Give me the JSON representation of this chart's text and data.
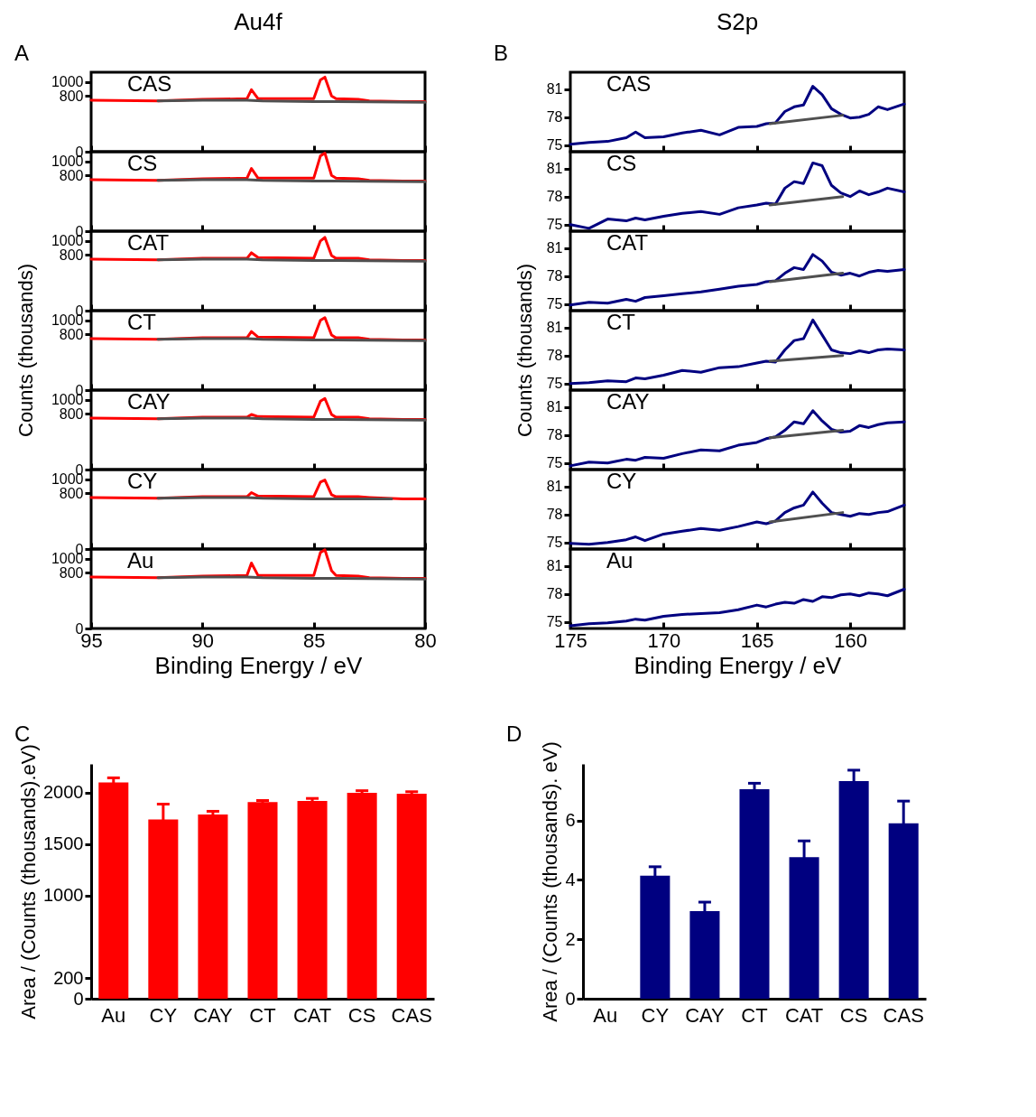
{
  "chart_data": [
    {
      "type": "line",
      "title": "Au4f",
      "annotations": [
        "A",
        "CAS"
      ],
      "xlim": [
        95,
        80
      ],
      "xticks": [
        95,
        90,
        85,
        80
      ],
      "ylim": [
        0,
        1140
      ],
      "yticks": [
        0,
        800,
        1000
      ],
      "tick_labels": "y",
      "series": [
        {
          "color": "#ff0000",
          "x": [
            95,
            92,
            90,
            88,
            87.8,
            87.5,
            85,
            84.7,
            84.5,
            84.2,
            84,
            83,
            82.5,
            81,
            80
          ],
          "values": [
            740,
            730,
            750,
            760,
            890,
            760,
            760,
            1030,
            1070,
            800,
            760,
            750,
            730,
            720,
            720
          ]
        },
        {
          "color": "#505050",
          "x": [
            92,
            90,
            88,
            87.3,
            85,
            84,
            80
          ],
          "values": [
            730,
            740,
            740,
            730,
            720,
            720,
            710
          ]
        }
      ]
    },
    {
      "type": "line",
      "annotations": [
        "CS"
      ],
      "xlim": [
        95,
        80
      ],
      "xticks": [
        95,
        90,
        85,
        80
      ],
      "ylim": [
        0,
        1140
      ],
      "yticks": [
        0,
        800,
        1000
      ],
      "tick_labels": "y",
      "series": [
        {
          "color": "#ff0000",
          "x": [
            95,
            92,
            90,
            88,
            87.8,
            87.5,
            85,
            84.7,
            84.5,
            84.2,
            84,
            83,
            82.5,
            81,
            80
          ],
          "values": [
            740,
            730,
            750,
            760,
            900,
            760,
            760,
            1080,
            1120,
            800,
            760,
            750,
            730,
            720,
            720
          ]
        },
        {
          "color": "#505050",
          "x": [
            92,
            90,
            88,
            87.3,
            85,
            84,
            80
          ],
          "values": [
            730,
            740,
            740,
            730,
            720,
            720,
            710
          ]
        }
      ]
    },
    {
      "type": "line",
      "annotations": [
        "CAT"
      ],
      "xlim": [
        95,
        80
      ],
      "xticks": [
        95,
        90,
        85,
        80
      ],
      "ylim": [
        0,
        1140
      ],
      "yticks": [
        0,
        800,
        1000
      ],
      "tick_labels": "y",
      "series": [
        {
          "color": "#ff0000",
          "x": [
            95,
            92,
            90,
            88,
            87.8,
            87.5,
            85,
            84.7,
            84.5,
            84.2,
            84,
            83,
            82.5,
            81,
            80
          ],
          "values": [
            740,
            730,
            750,
            750,
            830,
            760,
            750,
            1000,
            1050,
            790,
            750,
            750,
            730,
            720,
            720
          ]
        },
        {
          "color": "#505050",
          "x": [
            92,
            90,
            88,
            87.3,
            85,
            84,
            80
          ],
          "values": [
            730,
            740,
            740,
            730,
            720,
            720,
            710
          ]
        }
      ]
    },
    {
      "type": "line",
      "ylabel": "Counts (thousands)",
      "annotations": [
        "CT"
      ],
      "xlim": [
        95,
        80
      ],
      "xticks": [
        95,
        90,
        85,
        80
      ],
      "ylim": [
        0,
        1140
      ],
      "yticks": [
        0,
        800,
        1000
      ],
      "tick_labels": "y",
      "series": [
        {
          "color": "#ff0000",
          "x": [
            95,
            92,
            90,
            88,
            87.8,
            87.5,
            85,
            84.7,
            84.5,
            84.2,
            84,
            83,
            82.5,
            81,
            80
          ],
          "values": [
            740,
            730,
            750,
            750,
            840,
            760,
            750,
            1000,
            1040,
            790,
            750,
            750,
            730,
            720,
            720
          ]
        },
        {
          "color": "#505050",
          "x": [
            92,
            90,
            88,
            87.3,
            85,
            84,
            80
          ],
          "values": [
            730,
            740,
            740,
            730,
            720,
            720,
            710
          ]
        }
      ]
    },
    {
      "type": "line",
      "annotations": [
        "CAY"
      ],
      "xlim": [
        95,
        80
      ],
      "xticks": [
        95,
        90,
        85,
        80
      ],
      "ylim": [
        0,
        1140
      ],
      "yticks": [
        0,
        800,
        1000
      ],
      "tick_labels": "y",
      "series": [
        {
          "color": "#ff0000",
          "x": [
            95,
            92,
            90,
            88,
            87.8,
            87.5,
            85,
            84.7,
            84.5,
            84.2,
            84,
            83,
            82.5,
            81,
            80
          ],
          "values": [
            740,
            730,
            750,
            750,
            790,
            760,
            750,
            980,
            1020,
            790,
            750,
            750,
            730,
            720,
            720
          ]
        },
        {
          "color": "#505050",
          "x": [
            92,
            90,
            88,
            87.3,
            85,
            84,
            80
          ],
          "values": [
            730,
            740,
            740,
            730,
            720,
            720,
            710
          ]
        }
      ]
    },
    {
      "type": "line",
      "annotations": [
        "CY"
      ],
      "xlim": [
        95,
        80
      ],
      "xticks": [
        95,
        90,
        85,
        80
      ],
      "ylim": [
        0,
        1140
      ],
      "yticks": [
        0,
        800,
        1000
      ],
      "tick_labels": "y",
      "series": [
        {
          "color": "#ff0000",
          "x": [
            95,
            92,
            90,
            88,
            87.8,
            87.5,
            85,
            84.7,
            84.5,
            84.2,
            84,
            83,
            82.5,
            81,
            80
          ],
          "values": [
            740,
            730,
            750,
            750,
            810,
            760,
            750,
            960,
            990,
            780,
            750,
            750,
            740,
            720,
            720
          ]
        },
        {
          "color": "#505050",
          "x": [
            92,
            90,
            88,
            87.3,
            85,
            84,
            81.5
          ],
          "values": [
            730,
            740,
            740,
            730,
            720,
            720,
            720
          ]
        }
      ]
    },
    {
      "type": "line",
      "annotations": [
        "Au"
      ],
      "xlabel": "Binding Energy / eV",
      "xlim": [
        95,
        80
      ],
      "xticks": [
        95,
        90,
        85,
        80
      ],
      "ylim": [
        0,
        1140
      ],
      "yticks": [
        0,
        800,
        1000
      ],
      "series": [
        {
          "color": "#ff0000",
          "x": [
            95,
            92,
            90,
            88,
            87.8,
            87.5,
            85,
            84.7,
            84.5,
            84.2,
            84,
            83,
            82.5,
            81,
            80
          ],
          "values": [
            740,
            730,
            750,
            760,
            940,
            760,
            760,
            1090,
            1130,
            830,
            760,
            750,
            730,
            720,
            720
          ]
        },
        {
          "color": "#505050",
          "x": [
            92,
            90,
            88,
            87.3,
            85,
            84,
            80
          ],
          "values": [
            730,
            740,
            740,
            730,
            720,
            720,
            710
          ]
        }
      ]
    },
    {
      "type": "line",
      "title": "S2p",
      "annotations": [
        "B",
        "CAS"
      ],
      "xlim": [
        175,
        157.1
      ],
      "xticks": [
        175,
        170,
        165,
        160
      ],
      "ylim": [
        74.3,
        82.8
      ],
      "yticks": [
        75,
        78,
        81
      ],
      "tick_labels": "y",
      "series": [
        {
          "color": "#000080",
          "x": [
            175,
            174,
            173,
            172,
            171.5,
            171,
            170,
            169,
            168,
            167,
            166,
            165,
            164.5,
            164,
            163.5,
            163,
            162.5,
            162,
            161.5,
            161,
            160.5,
            160,
            159.5,
            159,
            158.5,
            158,
            157.1
          ],
          "values": [
            75.1,
            75.3,
            75.4,
            75.8,
            76.4,
            75.8,
            75.9,
            76.3,
            76.6,
            76.1,
            76.9,
            77.0,
            77.3,
            77.4,
            78.6,
            79.1,
            79.3,
            81.3,
            80.4,
            78.9,
            78.3,
            77.9,
            78.0,
            78.3,
            79.1,
            78.8,
            79.4
          ]
        },
        {
          "color": "#505050",
          "x": [
            164.3,
            160.4
          ],
          "values": [
            77.3,
            78.2
          ]
        }
      ]
    },
    {
      "type": "line",
      "annotations": [
        "CS"
      ],
      "xlim": [
        175,
        157.1
      ],
      "xticks": [
        175,
        170,
        165,
        160
      ],
      "ylim": [
        74.3,
        82.8
      ],
      "yticks": [
        75,
        78,
        81
      ],
      "tick_labels": "y",
      "series": [
        {
          "color": "#000080",
          "x": [
            175,
            174,
            173,
            172,
            171.5,
            171,
            170,
            169,
            168,
            167,
            166,
            165,
            164.5,
            164,
            163.5,
            163,
            162.5,
            162,
            161.5,
            161,
            160.5,
            160,
            159.5,
            159,
            158.5,
            158,
            157.1
          ],
          "values": [
            75.0,
            74.6,
            75.6,
            75.4,
            75.7,
            75.5,
            75.9,
            76.2,
            76.4,
            76.1,
            76.8,
            77.1,
            77.3,
            77.2,
            78.9,
            79.6,
            79.4,
            81.6,
            81.3,
            79.2,
            78.4,
            78.0,
            78.6,
            78.2,
            78.5,
            78.9,
            78.5
          ]
        },
        {
          "color": "#505050",
          "x": [
            164.3,
            160.4
          ],
          "values": [
            77.1,
            78.0
          ]
        }
      ]
    },
    {
      "type": "line",
      "annotations": [
        "CAT"
      ],
      "xlim": [
        175,
        157.1
      ],
      "xticks": [
        175,
        170,
        165,
        160
      ],
      "ylim": [
        74.3,
        82.8
      ],
      "yticks": [
        75,
        78,
        81
      ],
      "tick_labels": "y",
      "series": [
        {
          "color": "#000080",
          "x": [
            175,
            174,
            173,
            172,
            171.5,
            171,
            170,
            169,
            168,
            167,
            166,
            165,
            164.5,
            164,
            163.5,
            163,
            162.5,
            162,
            161.5,
            161,
            160.5,
            160,
            159.5,
            159,
            158.5,
            158,
            157.1
          ],
          "values": [
            74.9,
            75.2,
            75.1,
            75.5,
            75.3,
            75.7,
            75.9,
            76.1,
            76.3,
            76.6,
            76.9,
            77.1,
            77.4,
            77.5,
            78.3,
            78.9,
            78.7,
            80.3,
            79.6,
            78.4,
            78.1,
            78.3,
            78.0,
            78.4,
            78.6,
            78.5,
            78.7
          ]
        },
        {
          "color": "#505050",
          "x": [
            164.3,
            160.4
          ],
          "values": [
            77.4,
            78.3
          ]
        }
      ]
    },
    {
      "type": "line",
      "ylabel": "Counts (thousands)",
      "annotations": [
        "CT"
      ],
      "xlim": [
        175,
        157.1
      ],
      "xticks": [
        175,
        170,
        165,
        160
      ],
      "ylim": [
        74.3,
        82.8
      ],
      "yticks": [
        75,
        78,
        81
      ],
      "tick_labels": "y",
      "series": [
        {
          "color": "#000080",
          "x": [
            175,
            174,
            173,
            172,
            171.5,
            171,
            170,
            169,
            168,
            167,
            166,
            165,
            164.5,
            164,
            163.5,
            163,
            162.5,
            162,
            161.5,
            161,
            160.5,
            160,
            159.5,
            159,
            158.5,
            158,
            157.1
          ],
          "values": [
            75.0,
            75.1,
            75.3,
            75.2,
            75.6,
            75.5,
            75.9,
            76.4,
            76.2,
            76.7,
            76.8,
            77.2,
            77.4,
            77.3,
            78.6,
            79.6,
            79.8,
            81.8,
            80.2,
            78.6,
            78.3,
            78.2,
            78.5,
            78.3,
            78.6,
            78.7,
            78.6
          ]
        },
        {
          "color": "#505050",
          "x": [
            164.3,
            160.4
          ],
          "values": [
            77.4,
            78.0
          ]
        }
      ]
    },
    {
      "type": "line",
      "annotations": [
        "CAY"
      ],
      "xlim": [
        175,
        157.1
      ],
      "xticks": [
        175,
        170,
        165,
        160
      ],
      "ylim": [
        74.3,
        82.8
      ],
      "yticks": [
        75,
        78,
        81
      ],
      "tick_labels": "y",
      "series": [
        {
          "color": "#000080",
          "x": [
            175,
            174,
            173,
            172,
            171.5,
            171,
            170,
            169,
            168,
            167,
            166,
            165,
            164.5,
            164,
            163.5,
            163,
            162.5,
            162,
            161.5,
            161,
            160.5,
            160,
            159.5,
            159,
            158.5,
            158,
            157.1
          ],
          "values": [
            74.7,
            75.1,
            75.0,
            75.4,
            75.3,
            75.6,
            75.5,
            76.0,
            76.4,
            76.3,
            76.9,
            77.2,
            77.6,
            77.8,
            78.5,
            79.4,
            79.2,
            80.6,
            79.5,
            78.6,
            78.3,
            78.4,
            79.0,
            78.8,
            79.1,
            79.3,
            79.4
          ]
        },
        {
          "color": "#505050",
          "x": [
            164.3,
            160.4
          ],
          "values": [
            77.7,
            78.5
          ]
        }
      ]
    },
    {
      "type": "line",
      "annotations": [
        "CY"
      ],
      "xlim": [
        175,
        157.1
      ],
      "xticks": [
        175,
        170,
        165,
        160
      ],
      "ylim": [
        74.3,
        82.8
      ],
      "yticks": [
        75,
        78,
        81
      ],
      "tick_labels": "y",
      "series": [
        {
          "color": "#000080",
          "x": [
            175,
            174,
            173,
            172,
            171.5,
            171,
            170,
            169,
            168,
            167,
            166,
            165,
            164.5,
            164,
            163.5,
            163,
            162.5,
            162,
            161.5,
            161,
            160.5,
            160,
            159.5,
            159,
            158.5,
            158,
            157.1
          ],
          "values": [
            74.9,
            74.8,
            75.0,
            75.3,
            75.6,
            75.2,
            75.9,
            76.2,
            76.5,
            76.3,
            76.7,
            77.2,
            77.0,
            77.3,
            78.2,
            78.7,
            79.0,
            80.4,
            79.2,
            78.2,
            78.0,
            77.8,
            78.1,
            78.0,
            78.2,
            78.3,
            79.0
          ]
        },
        {
          "color": "#505050",
          "x": [
            164.3,
            160.4
          ],
          "values": [
            77.2,
            78.2
          ]
        }
      ]
    },
    {
      "type": "line",
      "annotations": [
        "Au"
      ],
      "xlabel": "Binding Energy / eV",
      "xlim": [
        175,
        157.1
      ],
      "xticks": [
        175,
        170,
        165,
        160
      ],
      "ylim": [
        74.3,
        82.8
      ],
      "yticks": [
        75,
        78,
        81
      ],
      "series": [
        {
          "color": "#000080",
          "x": [
            175,
            174,
            173,
            172,
            171.5,
            171,
            170,
            169,
            168,
            167,
            166,
            165,
            164.5,
            164,
            163.5,
            163,
            162.5,
            162,
            161.5,
            161,
            160.5,
            160,
            159.5,
            159,
            158.5,
            158,
            157.1
          ],
          "values": [
            74.6,
            74.8,
            74.9,
            75.1,
            75.3,
            75.2,
            75.6,
            75.8,
            75.9,
            76.0,
            76.3,
            76.8,
            76.6,
            76.9,
            77.1,
            77.0,
            77.4,
            77.2,
            77.7,
            77.6,
            77.9,
            78.0,
            77.8,
            78.1,
            78.0,
            77.8,
            78.5
          ]
        }
      ]
    },
    {
      "type": "bar",
      "annotations": [
        "C"
      ],
      "ylabel": "Area / (Counts (thousands).eV)",
      "categories": [
        "Au",
        "CY",
        "CAY",
        "CT",
        "CAT",
        "CS",
        "CAS"
      ],
      "ylim": [
        0,
        2280
      ],
      "yticks": [
        0,
        200,
        1000,
        1500,
        2000
      ],
      "series": [
        {
          "color": "#ff0000",
          "values": [
            2100,
            1740,
            1790,
            1910,
            1920,
            2000,
            1990
          ],
          "errors": [
            45,
            150,
            30,
            15,
            25,
            20,
            20
          ]
        }
      ]
    },
    {
      "type": "bar",
      "annotations": [
        "D"
      ],
      "ylabel": "Area / (Counts (thousands). eV)",
      "categories": [
        "Au",
        "CY",
        "CAY",
        "CT",
        "CAT",
        "CS",
        "CAS"
      ],
      "ylim": [
        0,
        7.9
      ],
      "yticks": [
        0,
        2,
        4,
        6
      ],
      "series": [
        {
          "color": "#000080",
          "values": [
            null,
            4.14,
            2.95,
            7.05,
            4.76,
            7.32,
            5.9
          ],
          "errors": [
            null,
            0.3,
            0.3,
            0.2,
            0.55,
            0.37,
            0.75
          ]
        }
      ]
    }
  ]
}
